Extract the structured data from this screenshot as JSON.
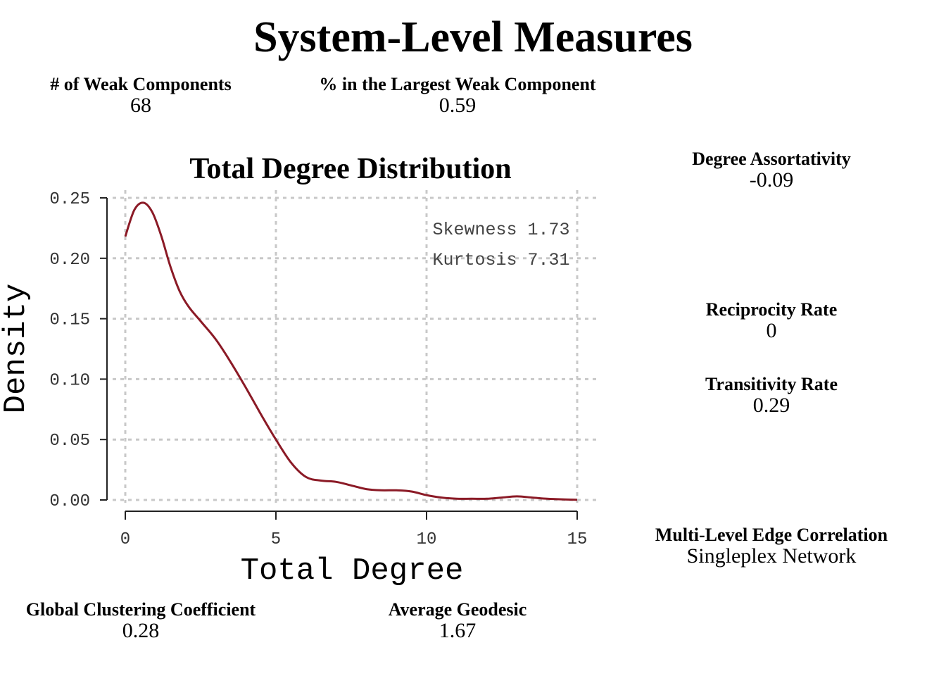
{
  "title": "System-Level Measures",
  "measures": {
    "weak_components": {
      "label": "# of Weak Components",
      "value": "68"
    },
    "largest_weak": {
      "label": "% in the Largest Weak Component",
      "value": "0.59"
    },
    "degree_assortativity": {
      "label": "Degree Assortativity",
      "value": "-0.09"
    },
    "reciprocity": {
      "label": "Reciprocity Rate",
      "value": "0"
    },
    "transitivity": {
      "label": "Transitivity Rate",
      "value": "0.29"
    },
    "multilevel": {
      "label": "Multi-Level Edge Correlation",
      "value": "Singleplex Network"
    },
    "global_clustering": {
      "label": "Global Clustering Coefficient",
      "value": "0.28"
    },
    "avg_geodesic": {
      "label": "Average Geodesic",
      "value": "1.67"
    }
  },
  "chart_data": {
    "type": "line",
    "title": "Total Degree Distribution",
    "xlabel": "Total Degree",
    "ylabel": "Density",
    "xlim": [
      0,
      15
    ],
    "ylim": [
      0,
      0.25
    ],
    "xticks": [
      0,
      5,
      10,
      15
    ],
    "yticks": [
      "0.00",
      "0.05",
      "0.10",
      "0.15",
      "0.20",
      "0.25"
    ],
    "grid": true,
    "line_color": "#8b1a26",
    "annotations": [
      "Skewness 1.73",
      "Kurtosis 7.31"
    ],
    "series": [
      {
        "x": [
          0,
          0.3,
          0.6,
          0.9,
          1.2,
          1.5,
          1.8,
          2.1,
          2.5,
          3.0,
          3.5,
          4.0,
          4.5,
          5.0,
          5.5,
          6.0,
          6.5,
          7.0,
          7.5,
          8.0,
          8.5,
          9.0,
          9.5,
          10.0,
          10.5,
          11.0,
          11.5,
          12.0,
          12.5,
          13.0,
          13.5,
          14.0,
          14.5,
          15.0
        ],
        "y": [
          0.218,
          0.24,
          0.246,
          0.238,
          0.218,
          0.193,
          0.173,
          0.16,
          0.148,
          0.133,
          0.114,
          0.093,
          0.071,
          0.05,
          0.031,
          0.019,
          0.016,
          0.015,
          0.012,
          0.009,
          0.008,
          0.008,
          0.007,
          0.004,
          0.002,
          0.001,
          0.001,
          0.001,
          0.002,
          0.003,
          0.002,
          0.001,
          0.0005,
          0.0002
        ]
      }
    ]
  }
}
